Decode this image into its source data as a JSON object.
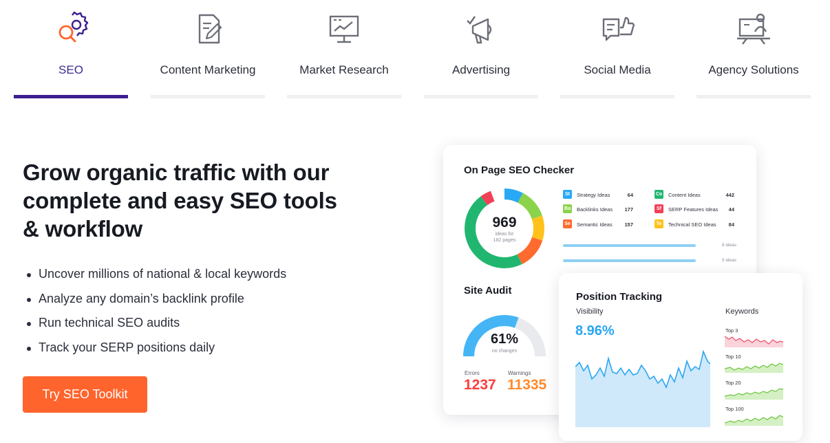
{
  "tabs": [
    {
      "label": "SEO",
      "icon": "seo-gear-magnifier-icon",
      "active": true
    },
    {
      "label": "Content Marketing",
      "icon": "content-edit-icon",
      "active": false
    },
    {
      "label": "Market Research",
      "icon": "market-research-chart-icon",
      "active": false
    },
    {
      "label": "Advertising",
      "icon": "megaphone-icon",
      "active": false
    },
    {
      "label": "Social Media",
      "icon": "thumbs-up-chat-icon",
      "active": false
    },
    {
      "label": "Agency Solutions",
      "icon": "presentation-person-icon",
      "active": false
    }
  ],
  "hero": {
    "headline": "Grow organic traffic with our complete and easy SEO tools & workflow",
    "bullets": [
      "Uncover millions of national & local keywords",
      "Analyze any domain’s backlink profile",
      "Run technical SEO audits",
      "Track your SERP positions daily"
    ],
    "cta_label": "Try SEO Toolkit"
  },
  "colors": {
    "accent": "#3b1f8f",
    "cta": "#ff642d",
    "errors": "#ff3b3b",
    "warnings": "#ff8a2d",
    "visibility": "#2aa6f2"
  },
  "on_page": {
    "title": "On Page SEO Checker",
    "total": "969",
    "total_caption_1": "ideas for",
    "total_caption_2": "182 pages",
    "ideas": [
      {
        "chip": "St",
        "name": "Strategy Ideas",
        "count": "64",
        "color": "#29a9f5"
      },
      {
        "chip": "Co",
        "name": "Content Ideas",
        "count": "442",
        "color": "#21b66f"
      },
      {
        "chip": "Ba",
        "name": "Backlinks Ideas",
        "count": "177",
        "color": "#8bd34a"
      },
      {
        "chip": "Sf",
        "name": "SERP Features Ideas",
        "count": "44",
        "color": "#f24056"
      },
      {
        "chip": "Se",
        "name": "Semantic Ideas",
        "count": "157",
        "color": "#ff6a2e"
      },
      {
        "chip": "Te",
        "name": "Technical SEO Ideas",
        "count": "84",
        "color": "#ffc21a"
      }
    ],
    "progress_notes": [
      "8 ideas",
      "5 ideas"
    ]
  },
  "site_audit": {
    "title": "Site Audit",
    "score": "61%",
    "score_caption": "no changes",
    "score_value": 0.61,
    "errors_label": "Errors",
    "errors": "1237",
    "warnings_label": "Warnings",
    "warnings": "11335"
  },
  "position_tracking": {
    "title": "Position Tracking",
    "visibility_label": "Visibility",
    "visibility_value": "8.96%",
    "keywords_label": "Keywords",
    "keyword_groups": [
      "Top 3",
      "Top 10",
      "Top 20",
      "Top 100"
    ]
  }
}
